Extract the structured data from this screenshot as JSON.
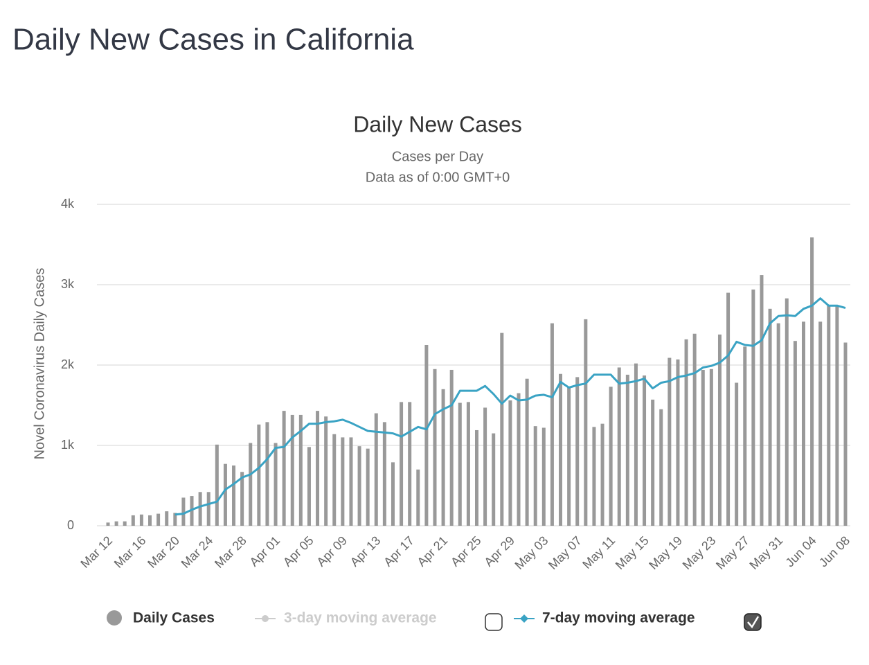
{
  "page_title": "Daily New Cases in California",
  "chart_data": {
    "type": "bar",
    "title": "Daily New Cases",
    "subtitle": [
      "Cases per Day",
      "Data as of 0:00 GMT+0"
    ],
    "y_label": "Novel Coronavirus Daily Cases",
    "categories": [
      "Mar 12",
      null,
      null,
      null,
      "Mar 16",
      null,
      null,
      null,
      "Mar 20",
      null,
      null,
      null,
      "Mar 24",
      null,
      null,
      null,
      "Mar 28",
      null,
      null,
      null,
      "Apr 01",
      null,
      null,
      null,
      "Apr 05",
      null,
      null,
      null,
      "Apr 09",
      null,
      null,
      null,
      "Apr 13",
      null,
      null,
      null,
      "Apr 17",
      null,
      null,
      null,
      "Apr 21",
      null,
      null,
      null,
      "Apr 25",
      null,
      null,
      null,
      "Apr 29",
      null,
      null,
      null,
      "May 03",
      null,
      null,
      null,
      "May 07",
      null,
      null,
      null,
      "May 11",
      null,
      null,
      null,
      "May 15",
      null,
      null,
      null,
      "May 19",
      null,
      null,
      null,
      "May 23",
      null,
      null,
      null,
      "May 27",
      null,
      null,
      null,
      "May 31",
      null,
      null,
      null,
      "Jun 04",
      null,
      null,
      null,
      "Jun 08"
    ],
    "series": [
      {
        "name": "Daily Cases",
        "color": "#999999",
        "values": [
          40,
          55,
          55,
          130,
          140,
          130,
          150,
          180,
          160,
          350,
          370,
          420,
          420,
          1010,
          770,
          750,
          670,
          1030,
          1260,
          1290,
          1030,
          1430,
          1380,
          1380,
          980,
          1430,
          1360,
          1140,
          1100,
          1100,
          990,
          960,
          1400,
          1290,
          790,
          1540,
          1540,
          700,
          2250,
          1950,
          1700,
          1940,
          1530,
          1540,
          1190,
          1470,
          1150,
          2400,
          1560,
          1650,
          1830,
          1240,
          1220,
          2520,
          1890,
          1730,
          1850,
          2570,
          1230,
          1270,
          1730,
          1970,
          1880,
          2020,
          1870,
          1570,
          1450,
          2090,
          2070,
          2320,
          2390,
          1940,
          1950,
          2380,
          2900,
          1780,
          2230,
          2940,
          3120,
          2700,
          2520,
          2830,
          2300,
          2540,
          3590,
          2540,
          2750,
          2740,
          2280
        ]
      },
      {
        "name": "7-day moving average",
        "color": "#3aa3c4",
        "values": [
          null,
          null,
          null,
          null,
          null,
          null,
          null,
          null,
          140,
          150,
          200,
          240,
          270,
          300,
          450,
          520,
          600,
          640,
          720,
          830,
          970,
          980,
          1100,
          1180,
          1270,
          1270,
          1290,
          1300,
          1320,
          1280,
          1230,
          1180,
          1170,
          1160,
          1150,
          1110,
          1170,
          1230,
          1200,
          1390,
          1450,
          1500,
          1680,
          1680,
          1680,
          1740,
          1640,
          1520,
          1620,
          1560,
          1570,
          1620,
          1630,
          1600,
          1790,
          1720,
          1750,
          1770,
          1880,
          1880,
          1880,
          1770,
          1780,
          1800,
          1830,
          1710,
          1780,
          1800,
          1850,
          1870,
          1900,
          1970,
          1990,
          2030,
          2120,
          2290,
          2250,
          2240,
          2310,
          2520,
          2610,
          2620,
          2610,
          2700,
          2740,
          2830,
          2740,
          2740,
          2710
        ]
      }
    ],
    "hidden_series": [
      {
        "name": "3-day moving average",
        "color": "#cccccc"
      }
    ],
    "ylim": [
      0,
      4000
    ],
    "yticks": [
      0,
      {
        "value": 1000,
        "label": "1k"
      },
      {
        "value": 2000,
        "label": "2k"
      },
      {
        "value": 3000,
        "label": "3k"
      },
      {
        "value": 4000,
        "label": "4k"
      }
    ],
    "grid": true
  }
}
